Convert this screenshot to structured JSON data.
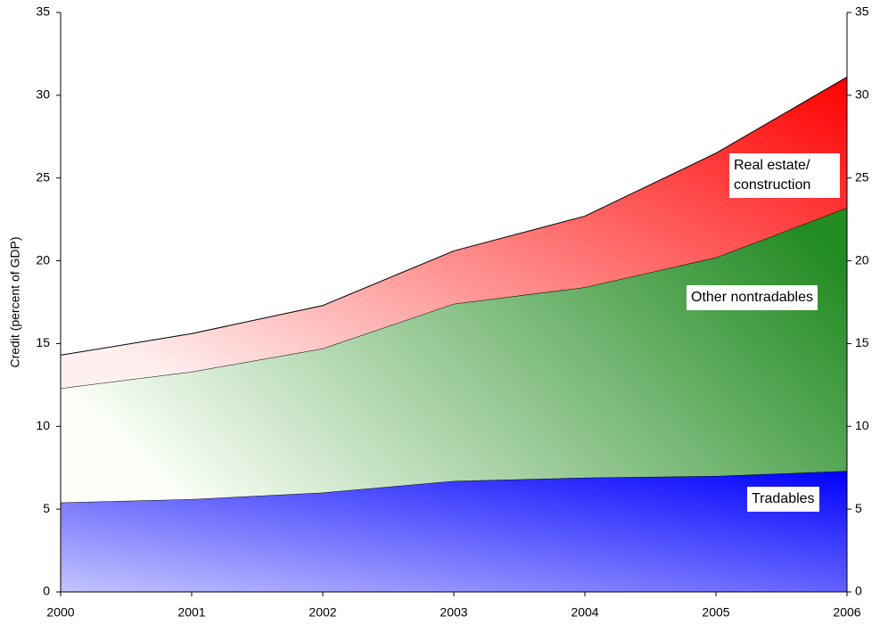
{
  "chart_data": {
    "type": "stacked_area",
    "y_label": "Credit (percent of GDP)",
    "x": [
      2000,
      2001,
      2002,
      2003,
      2004,
      2005,
      2006
    ],
    "xlim": [
      2000,
      2006
    ],
    "xticks": [
      2000,
      2001,
      2002,
      2003,
      2004,
      2005,
      2006
    ],
    "ylim": [
      0,
      35
    ],
    "yticks": [
      0,
      5,
      10,
      15,
      20,
      25,
      30,
      35
    ],
    "y2lim": [
      0,
      35
    ],
    "y2ticks": [
      0,
      5,
      10,
      15,
      20,
      25,
      30,
      35
    ],
    "series": [
      {
        "name": "Tradables",
        "color": "#0000ff",
        "values": [
          5.4,
          5.6,
          6.0,
          6.7,
          6.9,
          7.0,
          7.3
        ]
      },
      {
        "name": "Other nontradables",
        "color": "#228b22",
        "values": [
          6.9,
          7.7,
          8.7,
          10.7,
          11.5,
          13.2,
          15.9
        ]
      },
      {
        "name": "Real estate/ construction",
        "color": "#ff0000",
        "values": [
          2.0,
          2.3,
          2.6,
          3.2,
          4.3,
          6.3,
          7.9
        ]
      }
    ]
  }
}
